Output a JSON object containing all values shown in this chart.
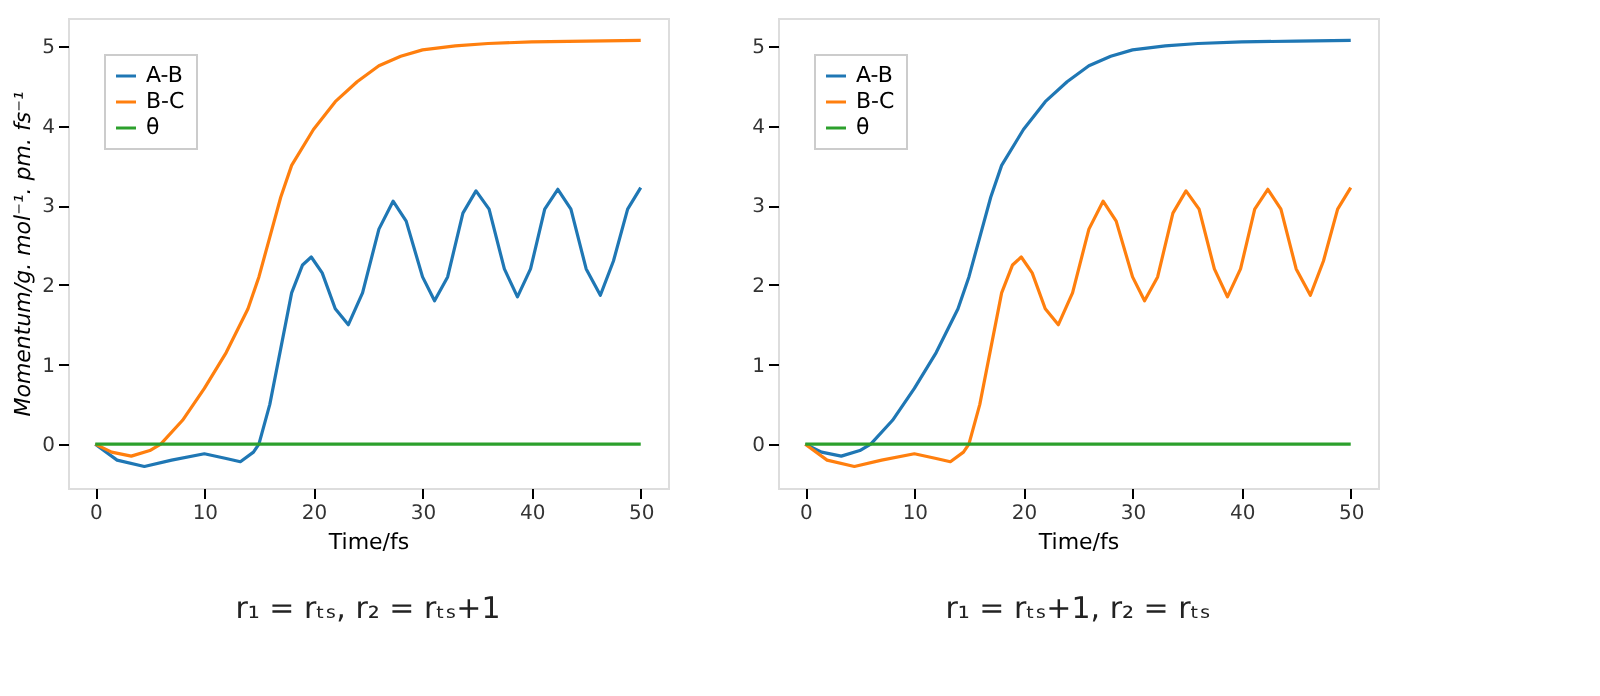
{
  "chart_data": [
    {
      "type": "line",
      "xlabel": "Time/fs",
      "ylabel": "Momentum/g. mol⁻¹. pm. fs⁻¹",
      "annotations": [
        "r₁ = rₜₛ, r₂ = rₜₛ+1"
      ],
      "xlim": [
        -2.5,
        52.5
      ],
      "ylim": [
        -0.55,
        5.35
      ],
      "xticks": [
        0,
        10,
        20,
        30,
        40,
        50
      ],
      "yticks": [
        0,
        1,
        2,
        3,
        4,
        5
      ],
      "grid": false,
      "legend": "top left",
      "line_style": "solid",
      "marker": "none",
      "series": [
        {
          "name": "A-B",
          "color": "#1f77b4",
          "x": [
            0,
            2,
            4.5,
            7,
            10,
            12,
            13.3,
            14.5,
            15,
            16,
            17,
            18,
            19,
            19.8,
            20.8,
            22,
            23.2,
            24.5,
            26,
            27.3,
            28.5,
            30,
            31.1,
            32.3,
            33.7,
            34.9,
            36.1,
            37.5,
            38.7,
            39.9,
            41.2,
            42.4,
            43.6,
            45,
            46.3,
            47.5,
            48.8,
            50
          ],
          "values": [
            0,
            -0.2,
            -0.28,
            -0.2,
            -0.12,
            -0.18,
            -0.22,
            -0.1,
            0,
            0.5,
            1.2,
            1.9,
            2.25,
            2.35,
            2.15,
            1.7,
            1.5,
            1.9,
            2.7,
            3.05,
            2.8,
            2.1,
            1.8,
            2.1,
            2.9,
            3.18,
            2.95,
            2.2,
            1.85,
            2.2,
            2.95,
            3.2,
            2.95,
            2.2,
            1.87,
            2.3,
            2.95,
            3.22
          ]
        },
        {
          "name": "B-C",
          "color": "#ff7f0e",
          "x": [
            0,
            1.5,
            3.3,
            5,
            6,
            8,
            10,
            12,
            14,
            15,
            16,
            17,
            18,
            20,
            22,
            24,
            26,
            28,
            30,
            33,
            36,
            40,
            45,
            50
          ],
          "values": [
            0,
            -0.1,
            -0.15,
            -0.08,
            0,
            0.3,
            0.7,
            1.15,
            1.7,
            2.1,
            2.6,
            3.1,
            3.5,
            3.95,
            4.3,
            4.55,
            4.75,
            4.87,
            4.95,
            5.0,
            5.03,
            5.05,
            5.06,
            5.07
          ]
        },
        {
          "name": "θ",
          "color": "#2ca02c",
          "x": [
            0,
            50
          ],
          "values": [
            0,
            0
          ]
        }
      ]
    },
    {
      "type": "line",
      "xlabel": "Time/fs",
      "annotations": [
        "r₁ = rₜₛ+1, r₂ = rₜₛ"
      ],
      "xlim": [
        -2.5,
        52.5
      ],
      "ylim": [
        -0.55,
        5.35
      ],
      "xticks": [
        0,
        10,
        20,
        30,
        40,
        50
      ],
      "yticks": [
        0,
        1,
        2,
        3,
        4,
        5
      ],
      "grid": false,
      "legend": "top left",
      "line_style": "solid",
      "marker": "none",
      "series": [
        {
          "name": "A-B",
          "color": "#1f77b4",
          "x": [
            0,
            1.5,
            3.3,
            5,
            6,
            8,
            10,
            12,
            14,
            15,
            16,
            17,
            18,
            20,
            22,
            24,
            26,
            28,
            30,
            33,
            36,
            40,
            45,
            50
          ],
          "values": [
            0,
            -0.1,
            -0.15,
            -0.08,
            0,
            0.3,
            0.7,
            1.15,
            1.7,
            2.1,
            2.6,
            3.1,
            3.5,
            3.95,
            4.3,
            4.55,
            4.75,
            4.87,
            4.95,
            5.0,
            5.03,
            5.05,
            5.06,
            5.07
          ]
        },
        {
          "name": "B-C",
          "color": "#ff7f0e",
          "x": [
            0,
            2,
            4.5,
            7,
            10,
            12,
            13.3,
            14.5,
            15,
            16,
            17,
            18,
            19,
            19.8,
            20.8,
            22,
            23.2,
            24.5,
            26,
            27.3,
            28.5,
            30,
            31.1,
            32.3,
            33.7,
            34.9,
            36.1,
            37.5,
            38.7,
            39.9,
            41.2,
            42.4,
            43.6,
            45,
            46.3,
            47.5,
            48.8,
            50
          ],
          "values": [
            0,
            -0.2,
            -0.28,
            -0.2,
            -0.12,
            -0.18,
            -0.22,
            -0.1,
            0,
            0.5,
            1.2,
            1.9,
            2.25,
            2.35,
            2.15,
            1.7,
            1.5,
            1.9,
            2.7,
            3.05,
            2.8,
            2.1,
            1.8,
            2.1,
            2.9,
            3.18,
            2.95,
            2.2,
            1.85,
            2.2,
            2.95,
            3.2,
            2.95,
            2.2,
            1.87,
            2.3,
            2.95,
            3.22
          ]
        },
        {
          "name": "θ",
          "color": "#2ca02c",
          "x": [
            0,
            50
          ],
          "values": [
            0,
            0
          ]
        }
      ]
    }
  ]
}
